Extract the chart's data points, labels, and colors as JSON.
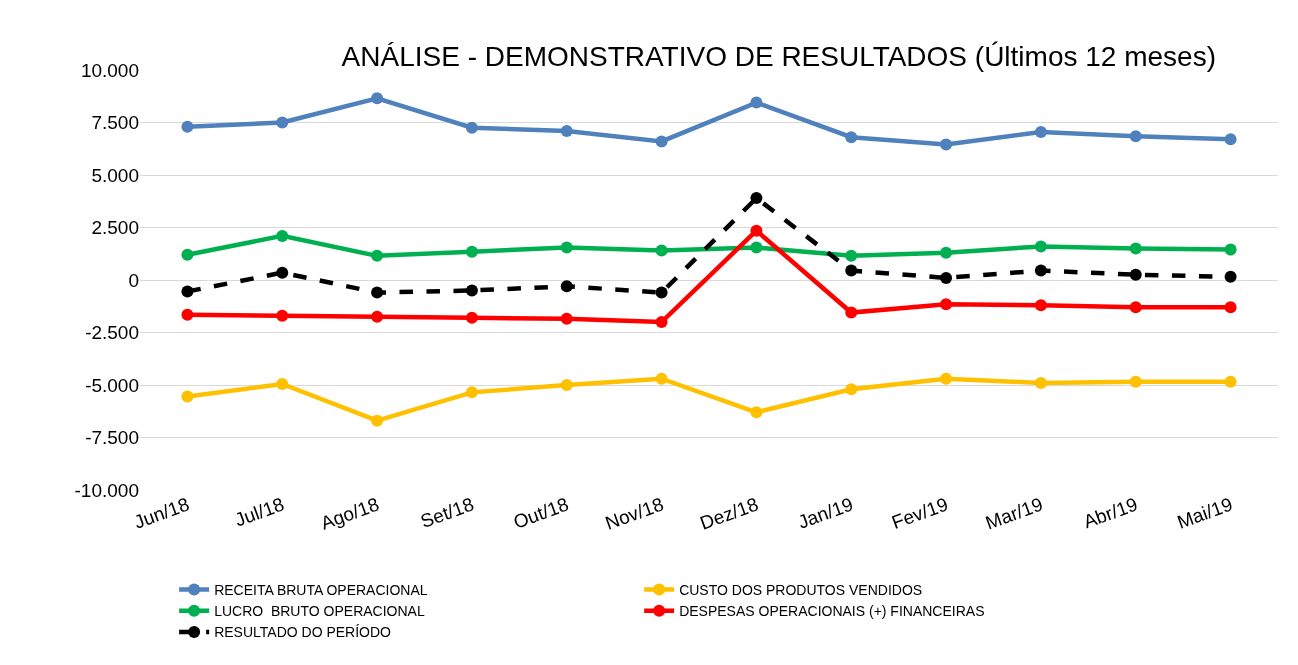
{
  "chart_data": {
    "type": "line",
    "title": "ANÁLISE - DEMONSTRATIVO DE RESULTADOS (Últimos 12 meses)",
    "categories": [
      "Jun/18",
      "Jul/18",
      "Ago/18",
      "Set/18",
      "Out/18",
      "Nov/18",
      "Dez/18",
      "Jan/19",
      "Fev/19",
      "Mar/19",
      "Abr/19",
      "Mai/19"
    ],
    "series": [
      {
        "name": "RECEITA BRUTA OPERACIONAL",
        "color": "#4f81bd",
        "values": [
          7300,
          7500,
          8650,
          7250,
          7100,
          6600,
          8450,
          6800,
          6450,
          7050,
          6850,
          6700
        ]
      },
      {
        "name": "CUSTO DOS PRODUTOS VENDIDOS",
        "color": "#ffc000",
        "values": [
          -5550,
          -4950,
          -6700,
          -5350,
          -5000,
          -4700,
          -6300,
          -5200,
          -4700,
          -4900,
          -4850,
          -4850
        ]
      },
      {
        "name": "LUCRO  BRUTO OPERACIONAL",
        "color": "#00b050",
        "values": [
          1200,
          2100,
          1150,
          1350,
          1550,
          1400,
          1550,
          1150,
          1300,
          1600,
          1500,
          1450
        ]
      },
      {
        "name": "DESPESAS OPERACIONAIS (+) FINANCEIRAS",
        "color": "#ff0000",
        "values": [
          -1650,
          -1700,
          -1750,
          -1800,
          -1850,
          -2000,
          2350,
          -1550,
          -1150,
          -1200,
          -1300,
          -1300
        ]
      },
      {
        "name": "RESULTADO DO PERÍODO",
        "color": "#000000",
        "line_style": "dashed",
        "values": [
          -550,
          350,
          -600,
          -500,
          -300,
          -600,
          3900,
          450,
          100,
          450,
          250,
          150
        ]
      }
    ],
    "ylim": [
      -10000,
      10000
    ],
    "yticks": [
      {
        "value": -10000,
        "label": "-10.000"
      },
      {
        "value": -7500,
        "label": "-7.500"
      },
      {
        "value": -5000,
        "label": "-5.000"
      },
      {
        "value": -2500,
        "label": "-2.500"
      },
      0,
      {
        "value": 2500,
        "label": "2.500"
      },
      {
        "value": 5000,
        "label": "5.000"
      },
      {
        "value": 7500,
        "label": "7.500"
      },
      {
        "value": 10000,
        "label": "10.000"
      }
    ],
    "grid": "y",
    "legend": "bottom",
    "marker": "circle",
    "line_style": "solid"
  }
}
